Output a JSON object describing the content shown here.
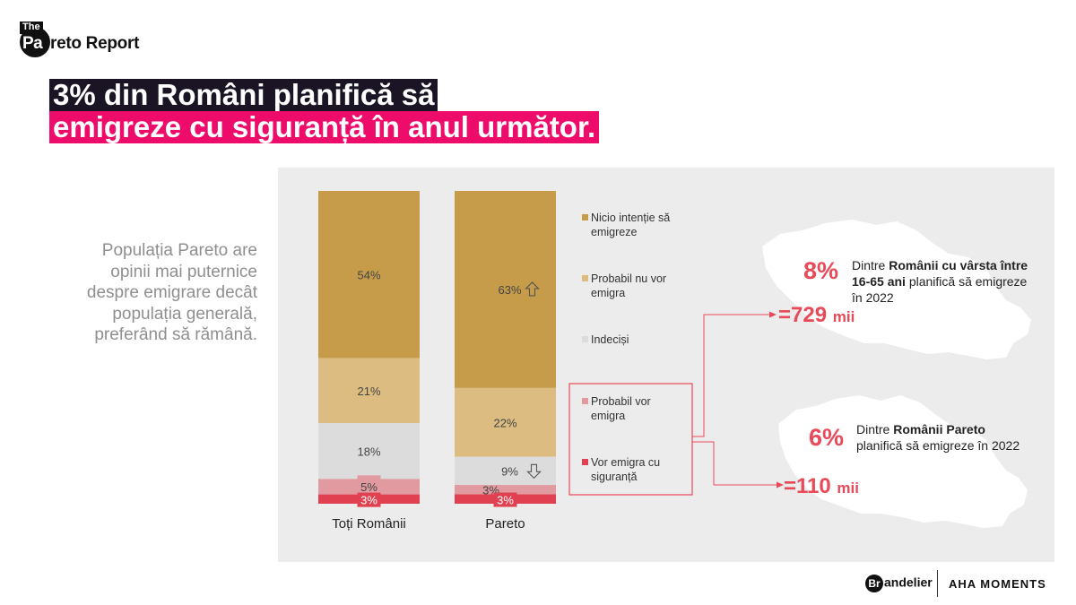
{
  "logo": {
    "the": "The",
    "pa": "Pa",
    "rest": "reto Report"
  },
  "title": {
    "line1": "3% din Români planifică să",
    "line2": "emigreze cu siguranță în anul următor."
  },
  "description": "Populația Pareto are opinii mai puternice despre emigrare decât populația generală, preferând să rămână.",
  "colors": {
    "nicio": "#c69c4a",
    "probabil_nu": "#dcbc80",
    "indecisi": "#dcdcdc",
    "probabil_vor": "#e09aa0",
    "vor_sigur": "#e0404f",
    "accent": "#e84a5a",
    "title_pink": "#ee0c6b"
  },
  "chart_data": {
    "type": "bar",
    "stacked": true,
    "normalized": true,
    "categories": [
      "Toți Românii",
      "Pareto"
    ],
    "series": [
      {
        "name": "Nicio intenție să emigreze",
        "values": [
          54,
          63
        ],
        "labels": [
          "54%",
          "63%"
        ]
      },
      {
        "name": "Probabil nu vor emigra",
        "values": [
          21,
          22
        ],
        "labels": [
          "21%",
          "22%"
        ]
      },
      {
        "name": "Indeciși",
        "values": [
          18,
          9
        ],
        "labels": [
          "18%",
          "9%"
        ]
      },
      {
        "name": "Probabil vor emigra",
        "values": [
          5,
          3
        ],
        "labels": [
          "5%",
          "3%"
        ]
      },
      {
        "name": "Vor emigra cu siguranță",
        "values": [
          3,
          3
        ],
        "labels": [
          "3%",
          "3%"
        ]
      }
    ],
    "annotations": [
      {
        "category": "Pareto",
        "series": "Nicio intenție să emigreze",
        "arrow": "up"
      },
      {
        "category": "Pareto",
        "series": "Indeciși",
        "arrow": "down"
      }
    ],
    "legend_lines": [
      [
        "Nicio intenție să",
        "emigreze"
      ],
      [
        "Probabil nu vor",
        "emigra"
      ],
      [
        "Indeciși"
      ],
      [
        "Probabil vor",
        "emigra"
      ],
      [
        "Vor emigra cu",
        "siguranță"
      ]
    ],
    "legend_position": "right",
    "highlighted_legend": [
      "Probabil vor emigra",
      "Vor emigra cu siguranță"
    ]
  },
  "maps": [
    {
      "pct": "8%",
      "text_pre": "Dintre ",
      "text_bold": "Românii cu vârsta între 16-65 ani",
      "text_post": " planifică să emigreze în 2022",
      "value": "=729",
      "unit": "mii"
    },
    {
      "pct": "6%",
      "text_pre": "Dintre ",
      "text_bold": "Românii Pareto",
      "text_post": " planifică să emigreze în 2022",
      "value": "=110",
      "unit": "mii"
    }
  ],
  "footer": {
    "brandelier_b": "Br",
    "brandelier_rest": "andelier",
    "aha": "AHA MOMENTS"
  }
}
